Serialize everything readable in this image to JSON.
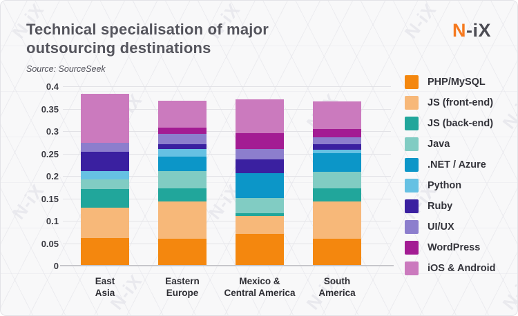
{
  "header": {
    "title_line1": "Technical specialisation of major",
    "title_line2": "outsourcing destinations",
    "source": "Source: SourceSeek",
    "logo_accent": "N",
    "logo_rest": "-iX"
  },
  "branding": {
    "watermark_text": "N-iX",
    "accent_color": "#f5791f",
    "text_color": "#55555d"
  },
  "chart_data": {
    "type": "bar",
    "stacked": true,
    "title": "Technical specialisation of major outsourcing destinations",
    "xlabel": "",
    "ylabel": "",
    "ylim": [
      0,
      0.4
    ],
    "yticks": [
      0,
      0.05,
      0.1,
      0.15,
      0.2,
      0.25,
      0.3,
      0.35,
      0.4
    ],
    "ytick_labels": [
      "0",
      "0.05",
      "0.1",
      "0.15",
      "0.2",
      "0.25",
      "0.3",
      "0.35",
      "0.4"
    ],
    "grid": true,
    "legend_position": "right",
    "categories": [
      "East Asia",
      "Eastern Europe",
      "Mexico & Central America",
      "South America"
    ],
    "category_label_lines": [
      "East\nAsia",
      "Eastern\nEurope",
      "Mexico &\nCentral America",
      "South\nAmerica"
    ],
    "series": [
      {
        "name": "PHP/MySQL",
        "color": "#f4870e",
        "values": [
          0.06,
          0.059,
          0.07,
          0.059
        ]
      },
      {
        "name": "JS (front-end)",
        "color": "#f7b879",
        "values": [
          0.067,
          0.083,
          0.04,
          0.083
        ]
      },
      {
        "name": "JS (back-end)",
        "color": "#21a69b",
        "values": [
          0.042,
          0.029,
          0.006,
          0.029
        ]
      },
      {
        "name": "Java",
        "color": "#81ccc3",
        "values": [
          0.022,
          0.038,
          0.034,
          0.036
        ]
      },
      {
        "name": ".NET / Azure",
        "color": "#0c96c8",
        "values": [
          0.0,
          0.032,
          0.055,
          0.042
        ]
      },
      {
        "name": "Python",
        "color": "#66c1e3",
        "values": [
          0.018,
          0.018,
          0.0,
          0.008
        ]
      },
      {
        "name": "Ruby",
        "color": "#3a20a0",
        "values": [
          0.043,
          0.011,
          0.03,
          0.012
        ]
      },
      {
        "name": "UI/UX",
        "color": "#8c7ecd",
        "values": [
          0.021,
          0.023,
          0.024,
          0.016
        ]
      },
      {
        "name": "WordPress",
        "color": "#a31c93",
        "values": [
          0.0,
          0.014,
          0.035,
          0.018
        ]
      },
      {
        "name": "iOS & Android",
        "color": "#cb7abe",
        "values": [
          0.108,
          0.059,
          0.075,
          0.061
        ]
      }
    ],
    "totals": [
      0.381,
      0.366,
      0.369,
      0.364
    ]
  }
}
